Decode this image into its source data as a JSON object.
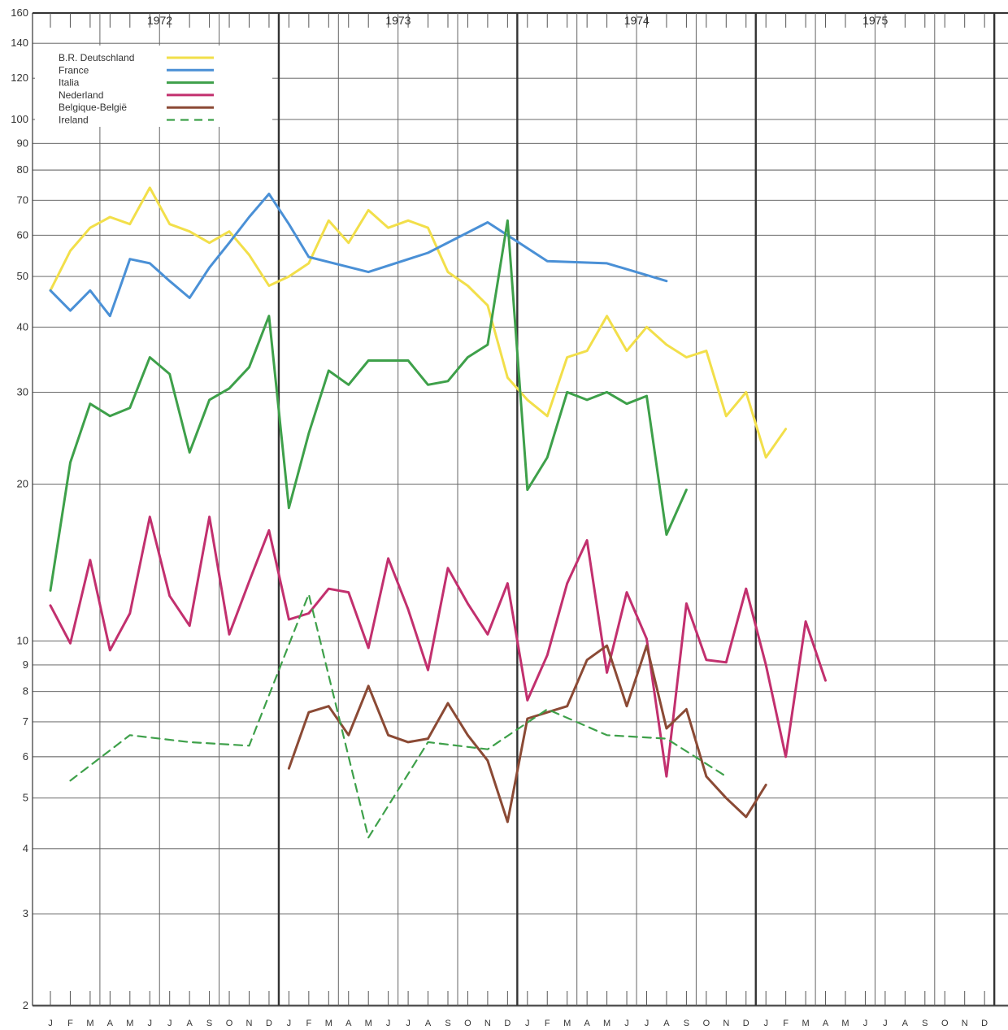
{
  "chart_data": {
    "type": "line",
    "title": "",
    "xlabel": "",
    "ylabel": "",
    "y_scale": "log",
    "ylim": [
      2,
      160
    ],
    "y_ticks": [
      2,
      3,
      4,
      5,
      6,
      7,
      8,
      9,
      10,
      20,
      30,
      40,
      50,
      60,
      70,
      80,
      90,
      100,
      120,
      140,
      160
    ],
    "years": [
      "1972",
      "1973",
      "1974",
      "1975"
    ],
    "month_labels": [
      "J",
      "F",
      "M",
      "A",
      "M",
      "J",
      "J",
      "A",
      "S",
      "O",
      "N",
      "D"
    ],
    "grid": true,
    "legend_position": "top-left",
    "series": [
      {
        "name": "B.R. Deutschland",
        "color": "#f2df4a",
        "style": "solid",
        "values": [
          47,
          56,
          62,
          65,
          63,
          74,
          63,
          61,
          58,
          61,
          55,
          48,
          50,
          53,
          64,
          58,
          67,
          62,
          64,
          62,
          51,
          48,
          44,
          32,
          29,
          27,
          35,
          36,
          42,
          36,
          40,
          37,
          35,
          36,
          27,
          30,
          22.5,
          25.5
        ]
      },
      {
        "name": "France",
        "color": "#4a90d6",
        "style": "solid",
        "values": [
          47,
          43,
          47,
          42,
          54,
          53,
          49,
          45.5,
          52,
          58,
          65,
          72,
          63,
          54.5,
          null,
          null,
          51,
          null,
          null,
          55.5,
          null,
          null,
          63.5,
          null,
          null,
          53.5,
          null,
          null,
          53,
          null,
          null,
          49
        ]
      },
      {
        "name": "Italia",
        "color": "#3ea04a",
        "style": "solid",
        "values": [
          12.5,
          22,
          28.5,
          27,
          28,
          35,
          32.5,
          23,
          29,
          30.5,
          33.5,
          42,
          18,
          25,
          33,
          31,
          34.5,
          34.5,
          34.5,
          31,
          31.5,
          35,
          37,
          64,
          19.5,
          22.5,
          30,
          29,
          30,
          28.5,
          29.5,
          16,
          19.5
        ]
      },
      {
        "name": "Nederland",
        "color": "#c2306e",
        "style": "solid",
        "values": [
          11.7,
          9.9,
          14.3,
          9.6,
          11.3,
          17.3,
          12.2,
          10.7,
          17.3,
          10.3,
          13,
          16.3,
          11,
          11.3,
          12.6,
          12.4,
          9.7,
          14.4,
          11.5,
          8.8,
          13.8,
          11.8,
          10.3,
          12.9,
          7.7,
          9.4,
          12.9,
          15.6,
          8.7,
          12.4,
          10.1,
          5.5,
          11.8,
          9.2,
          9.1,
          12.6,
          9,
          6,
          10.9,
          8.4
        ]
      },
      {
        "name": "Belgique-België",
        "color": "#8b4a35",
        "style": "solid",
        "values": [
          null,
          null,
          null,
          null,
          null,
          null,
          null,
          null,
          null,
          null,
          null,
          null,
          5.7,
          7.3,
          7.5,
          6.6,
          8.2,
          6.6,
          6.4,
          6.5,
          7.6,
          6.6,
          5.9,
          4.5,
          7.1,
          7.3,
          7.5,
          9.2,
          9.8,
          7.5,
          9.8,
          6.8,
          7.4,
          5.5,
          5,
          4.6,
          5.3
        ]
      },
      {
        "name": "Ireland",
        "color": "#3ea04a",
        "style": "dashed",
        "values": [
          null,
          5.4,
          null,
          null,
          6.6,
          null,
          null,
          6.4,
          null,
          null,
          6.3,
          null,
          null,
          12.3,
          null,
          null,
          4.2,
          null,
          null,
          6.4,
          null,
          null,
          6.2,
          null,
          null,
          7.4,
          null,
          null,
          6.6,
          null,
          null,
          6.5,
          null,
          null,
          5.5
        ]
      }
    ]
  }
}
